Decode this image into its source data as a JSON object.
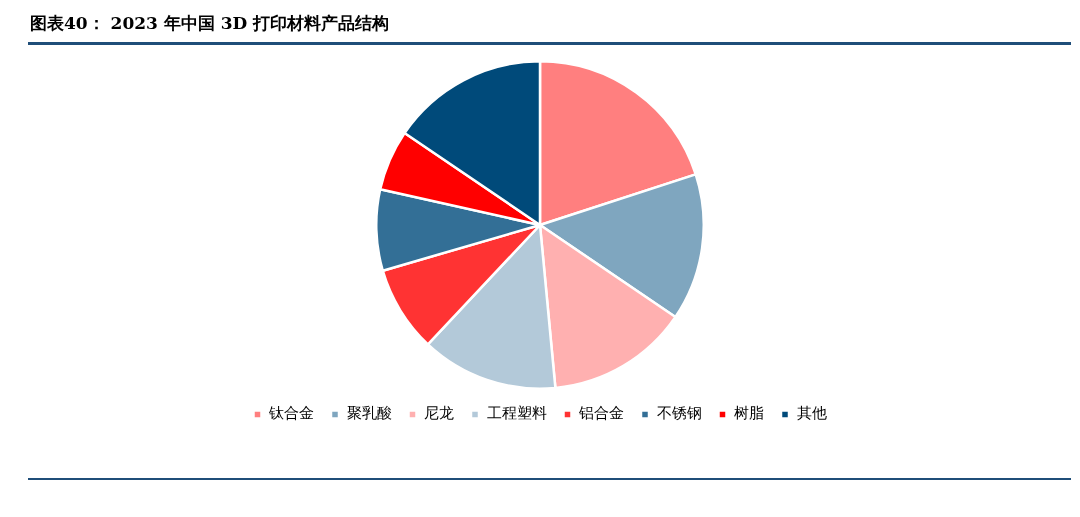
{
  "chart_data": {
    "type": "pie",
    "title": "图表40： 2023 年中国 3D 打印材料产品结构",
    "categories": [
      "钛合金",
      "聚乳酸",
      "尼龙",
      "工程塑料",
      "铝合金",
      "不锈钢",
      "树脂",
      "其他"
    ],
    "values": [
      20,
      14.5,
      14,
      13.5,
      8.5,
      8,
      6,
      15.5
    ],
    "colors": [
      "#ff7f7f",
      "#7fa6bf",
      "#ffb0b0",
      "#b3c9d9",
      "#ff3333",
      "#336f96",
      "#ff0000",
      "#004a7a"
    ],
    "legend": "bottom"
  }
}
